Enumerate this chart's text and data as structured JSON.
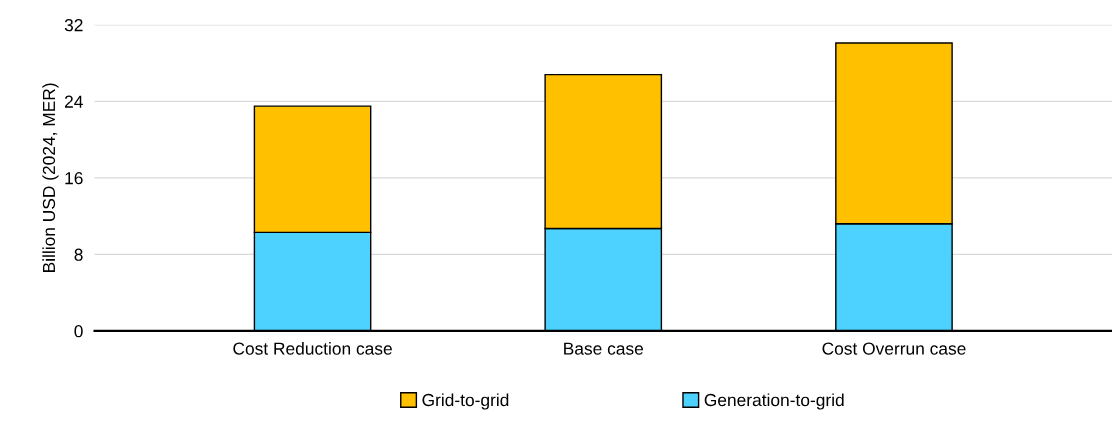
{
  "chart_data": {
    "type": "bar",
    "stacked": true,
    "ylabel": "Billion USD (2024, MER)",
    "categories": [
      "Cost Reduction case",
      "Base case",
      "Cost Overrun case"
    ],
    "series": [
      {
        "name": "Generation-to-grid",
        "color": "#4dd2ff",
        "values": [
          10.3,
          10.7,
          11.2
        ]
      },
      {
        "name": "Grid-to-grid",
        "color": "#ffc000",
        "values": [
          13.2,
          16.1,
          18.9
        ]
      }
    ],
    "ylim": [
      0,
      32
    ],
    "yticks": [
      0,
      8,
      16,
      24,
      32
    ],
    "grid": "y",
    "legend": "bottom"
  }
}
